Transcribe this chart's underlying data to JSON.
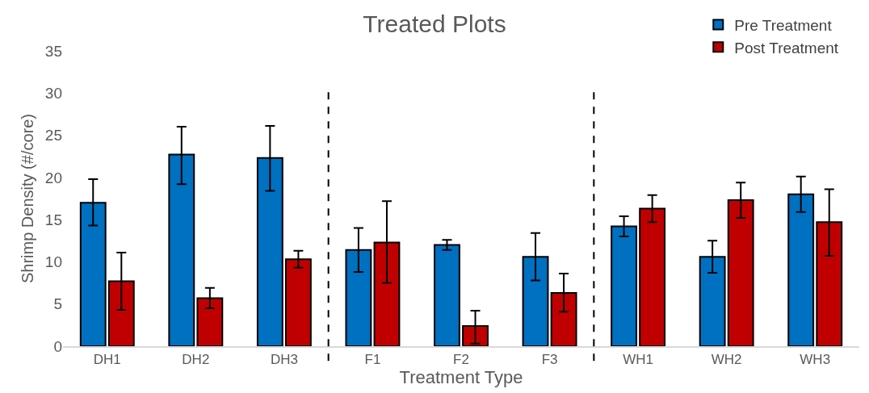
{
  "chart_data": {
    "type": "bar",
    "title": "Treated Plots",
    "xlabel": "Treatment Type",
    "ylabel": "Shrimp Density (#/core)",
    "categories": [
      "DH1",
      "DH2",
      "DH3",
      "F1",
      "F2",
      "F3",
      "WH1",
      "WH2",
      "WH3"
    ],
    "series": [
      {
        "name": "Pre Treatment",
        "color": "#0070c0",
        "values": [
          17.0,
          22.7,
          22.3,
          11.4,
          12.0,
          10.6,
          14.2,
          10.6,
          18.0
        ],
        "errors": [
          [
            14.3,
            19.8
          ],
          [
            19.2,
            26.0
          ],
          [
            18.4,
            26.1
          ],
          [
            8.8,
            14.0
          ],
          [
            11.4,
            12.6
          ],
          [
            7.8,
            13.4
          ],
          [
            13.0,
            15.4
          ],
          [
            8.7,
            12.5
          ],
          [
            15.9,
            20.1
          ]
        ]
      },
      {
        "name": "Post Treatment",
        "color": "#c00000",
        "values": [
          7.7,
          5.7,
          10.3,
          12.3,
          2.4,
          6.3,
          16.3,
          17.3,
          14.7
        ],
        "errors": [
          [
            4.3,
            11.1
          ],
          [
            4.5,
            6.9
          ],
          [
            9.3,
            11.3
          ],
          [
            7.5,
            17.2
          ],
          [
            0.3,
            4.2
          ],
          [
            4.1,
            8.6
          ],
          [
            14.7,
            17.9
          ],
          [
            15.2,
            19.4
          ],
          [
            10.7,
            18.6
          ]
        ]
      }
    ],
    "ylim": [
      0,
      35
    ],
    "yticks": [
      0,
      5,
      10,
      15,
      20,
      25,
      30,
      35
    ],
    "legend": "top right"
  }
}
